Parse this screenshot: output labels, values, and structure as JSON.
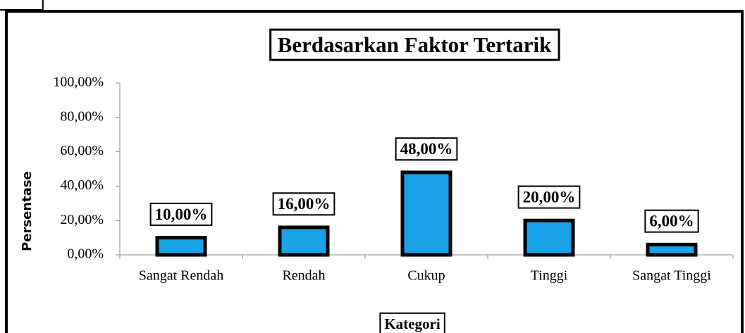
{
  "chart_data": {
    "type": "bar",
    "title": "Berdasarkan Faktor Tertarik",
    "x_label": "Kategori",
    "y_label": "Persentase",
    "categories": [
      "Sangat Rendah",
      "Rendah",
      "Cukup",
      "Tinggi",
      "Sangat Tinggi"
    ],
    "values": [
      10,
      16,
      48,
      20,
      6
    ],
    "value_labels": [
      "10,00%",
      "16,00%",
      "48,00%",
      "20,00%",
      "6,00%"
    ],
    "color": "#1aa3e8",
    "ylim": [
      0,
      100
    ],
    "yticks": [
      {
        "value": 0,
        "label": "0,00%"
      },
      {
        "value": 20,
        "label": "20,00%"
      },
      {
        "value": 40,
        "label": "40,00%"
      },
      {
        "value": 60,
        "label": "60,00%"
      },
      {
        "value": 80,
        "label": "80,00%"
      },
      {
        "value": 100,
        "label": "100,00%"
      }
    ],
    "grid": false
  }
}
